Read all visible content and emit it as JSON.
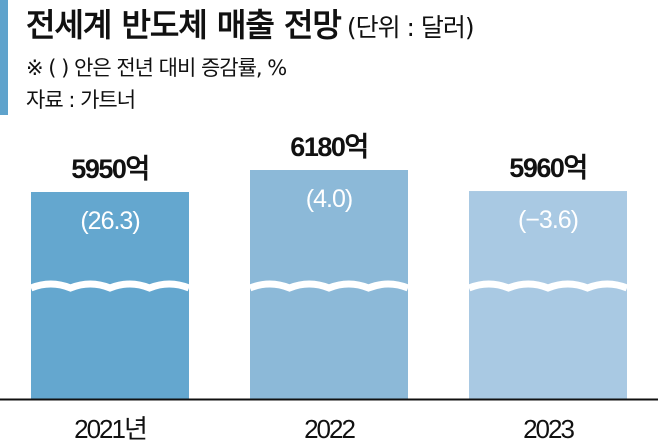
{
  "chart_data": {
    "type": "bar",
    "title": "전세계 반도체 매출 전망",
    "unit": "(단위 : 달러)",
    "note": "※ (   ) 안은 전년 대비 증감률, %",
    "source": "자료 : 가트너",
    "categories": [
      "2021년",
      "2022",
      "2023"
    ],
    "values": [
      5950,
      6180,
      5960
    ],
    "value_labels": [
      "5950억",
      "6180억",
      "5960억"
    ],
    "growth_labels": [
      "(26.3)",
      "(4.0)",
      "(−3.6)"
    ],
    "growth": [
      26.3,
      4.0,
      -3.6
    ],
    "axis_break": true,
    "colors": [
      "#64a7cf",
      "#8cb9d8",
      "#a9c9e3"
    ]
  }
}
